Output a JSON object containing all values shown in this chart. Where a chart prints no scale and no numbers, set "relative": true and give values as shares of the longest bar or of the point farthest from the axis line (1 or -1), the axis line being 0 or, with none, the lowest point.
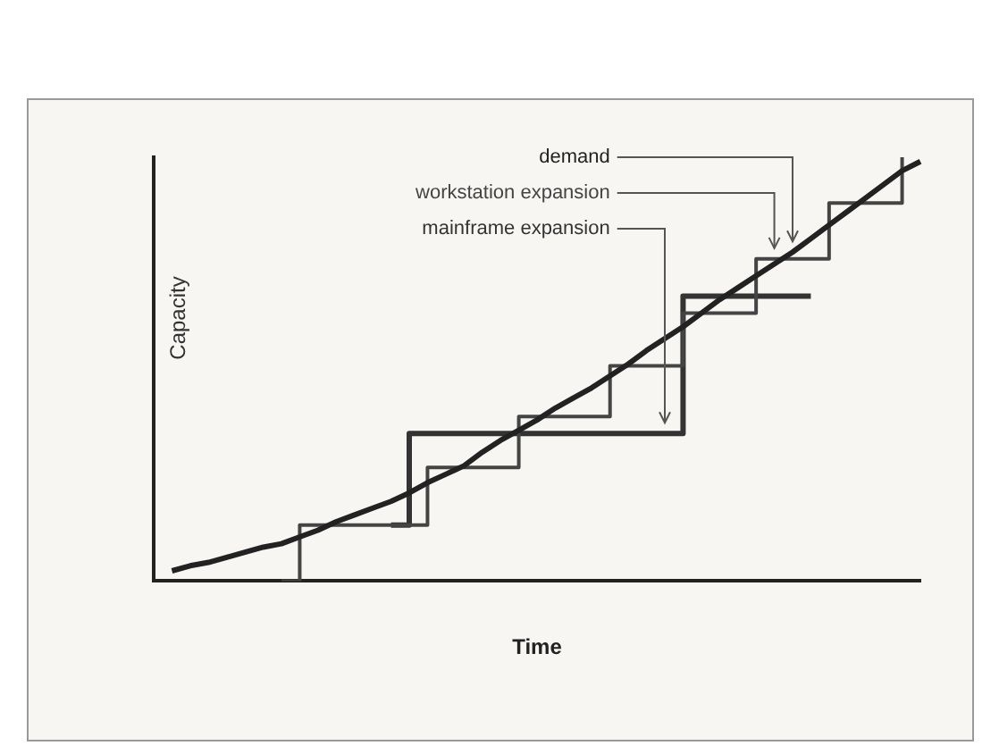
{
  "chart_data": {
    "type": "line",
    "relative": true,
    "xlabel": "Time",
    "ylabel": "Capacity",
    "legend": false,
    "grid": false,
    "marker": "none",
    "categories": [
      null,
      null,
      null,
      null,
      null,
      null,
      null,
      null,
      null,
      null,
      null,
      null,
      null,
      null,
      null,
      null,
      null,
      null,
      null,
      null,
      null,
      null,
      null,
      null,
      null,
      null,
      null,
      null,
      null,
      null,
      null,
      null,
      null,
      null,
      null,
      null,
      null,
      null,
      null,
      null,
      null,
      null,
      null
    ],
    "series": [
      {
        "name": "demand",
        "color": "#222222",
        "values": [
          null,
          0.024,
          0.036,
          0.044,
          0.056,
          0.068,
          0.08,
          0.088,
          0.104,
          0.12,
          0.14,
          0.156,
          0.172,
          0.188,
          0.208,
          0.232,
          0.252,
          0.272,
          0.304,
          0.332,
          0.356,
          0.38,
          0.408,
          0.432,
          0.456,
          0.484,
          0.512,
          0.544,
          0.572,
          0.6,
          0.632,
          0.664,
          0.692,
          0.72,
          0.748,
          0.776,
          0.808,
          0.84,
          0.872,
          0.904,
          0.936,
          0.968,
          0.99
        ]
      },
      {
        "name": "workstation expansion",
        "type": "step",
        "color": "#444444",
        "values": [
          null,
          null,
          null,
          null,
          null,
          null,
          null,
          0,
          0.132,
          0.132,
          0.132,
          0.132,
          0.132,
          0.132,
          0.132,
          0.268,
          0.268,
          0.268,
          0.268,
          0.268,
          0.388,
          0.388,
          0.388,
          0.388,
          0.388,
          0.508,
          0.508,
          0.508,
          0.508,
          0.632,
          0.632,
          0.632,
          0.632,
          0.76,
          0.76,
          0.76,
          0.76,
          0.892,
          0.892,
          0.892,
          0.892,
          1.0,
          null
        ]
      },
      {
        "name": "mainframe expansion",
        "type": "step",
        "color": "#333333",
        "values": [
          null,
          null,
          null,
          null,
          null,
          null,
          null,
          null,
          null,
          null,
          null,
          null,
          null,
          0.132,
          0.348,
          0.348,
          0.348,
          0.348,
          0.348,
          0.348,
          0.348,
          0.348,
          0.348,
          0.348,
          0.348,
          0.348,
          0.348,
          0.348,
          0.348,
          0.672,
          0.672,
          0.672,
          0.672,
          0.672,
          0.672,
          0.672,
          0.672,
          null,
          null,
          null,
          null,
          null,
          null
        ]
      }
    ]
  }
}
